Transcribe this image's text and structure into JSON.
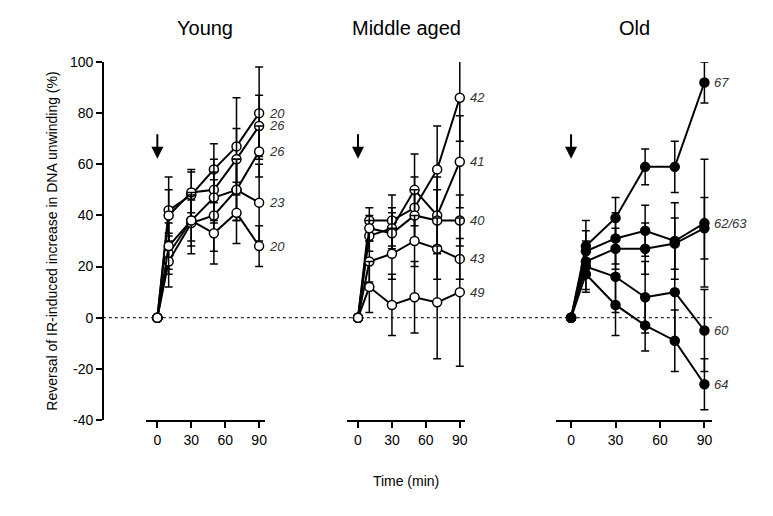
{
  "chart_data": [
    {
      "type": "line",
      "title": "Young",
      "y_label": "Reversal of IR-induced increase in DNA unwinding (%)",
      "x": [
        0,
        10,
        30,
        50,
        70,
        90
      ],
      "xlim": [
        -10,
        95
      ],
      "xticks": [
        0,
        30,
        60,
        90
      ],
      "ylim": [
        -40,
        100
      ],
      "yticks": [
        -40,
        -20,
        0,
        20,
        40,
        60,
        80,
        100
      ],
      "baseline": 0,
      "grid": false,
      "series": [
        {
          "name": "20",
          "color": "#000000",
          "marker": "open circle",
          "values": [
            0,
            42,
            48,
            58,
            67,
            80
          ],
          "error": [
            0,
            13,
            10,
            10,
            19,
            18
          ]
        },
        {
          "name": "26",
          "color": "#000000",
          "marker": "open circle",
          "values": [
            0,
            40,
            49,
            50,
            62,
            75
          ],
          "error": [
            0,
            10,
            8,
            12,
            12,
            12
          ]
        },
        {
          "name": "26",
          "color": "#000000",
          "marker": "open circle",
          "values": [
            0,
            25,
            38,
            47,
            50,
            65
          ],
          "error": [
            0,
            8,
            8,
            10,
            12,
            10
          ]
        },
        {
          "name": "23",
          "color": "#000000",
          "marker": "open circle",
          "values": [
            0,
            22,
            37,
            40,
            50,
            45
          ],
          "error": [
            0,
            10,
            12,
            14,
            12,
            15
          ]
        },
        {
          "name": "20",
          "color": "#000000",
          "marker": "open circle",
          "values": [
            0,
            28,
            38,
            33,
            41,
            28
          ],
          "error": [
            0,
            9,
            10,
            12,
            12,
            8
          ]
        }
      ]
    },
    {
      "type": "line",
      "title": "Middle aged",
      "x_label": "Time (min)",
      "x": [
        0,
        10,
        30,
        50,
        70,
        90
      ],
      "xlim": [
        -10,
        95
      ],
      "xticks": [
        0,
        30,
        60,
        90
      ],
      "series": [
        {
          "name": "42",
          "color": "#000000",
          "marker": "open circle",
          "values": [
            0,
            38,
            38,
            43,
            58,
            86
          ],
          "error": [
            0,
            5,
            10,
            12,
            17,
            17
          ]
        },
        {
          "name": "41",
          "color": "#000000",
          "marker": "open circle",
          "values": [
            0,
            32,
            35,
            50,
            40,
            61
          ],
          "error": [
            0,
            6,
            8,
            14,
            15,
            18
          ]
        },
        {
          "name": "40",
          "color": "#000000",
          "marker": "open circle",
          "values": [
            0,
            35,
            33,
            40,
            38,
            38
          ],
          "error": [
            0,
            5,
            8,
            10,
            12,
            10
          ]
        },
        {
          "name": "43",
          "color": "#000000",
          "marker": "open circle",
          "values": [
            0,
            22,
            25,
            30,
            27,
            23
          ],
          "error": [
            0,
            8,
            10,
            10,
            12,
            8
          ]
        },
        {
          "name": "49",
          "color": "#000000",
          "marker": "open circle",
          "values": [
            0,
            12,
            5,
            8,
            6,
            10
          ],
          "error": [
            0,
            10,
            12,
            14,
            22,
            29
          ]
        }
      ]
    },
    {
      "type": "line",
      "title": "Old",
      "x": [
        0,
        10,
        30,
        50,
        70,
        90
      ],
      "xlim": [
        -10,
        95
      ],
      "xticks": [
        0,
        30,
        60,
        90
      ],
      "series": [
        {
          "name": "67",
          "color": "#000000",
          "marker": "circle",
          "values": [
            0,
            28,
            39,
            59,
            59,
            92
          ],
          "error": [
            0,
            10,
            8,
            7,
            10,
            8
          ]
        },
        {
          "name": "62/63",
          "color": "#000000",
          "marker": "circle",
          "values": [
            0,
            26,
            31,
            34,
            30,
            37
          ],
          "error": [
            0,
            8,
            10,
            10,
            15,
            25
          ]
        },
        {
          "name": null,
          "color": "#000000",
          "marker": "circle",
          "values": [
            0,
            22,
            27,
            27,
            29,
            35
          ],
          "error": [
            0,
            6,
            8,
            10,
            10,
            12
          ]
        },
        {
          "name": "60",
          "color": "#000000",
          "marker": "circle",
          "values": [
            0,
            20,
            16,
            8,
            10,
            -5
          ],
          "error": [
            0,
            10,
            14,
            14,
            20,
            16
          ]
        },
        {
          "name": "64",
          "color": "#000000",
          "marker": "circle",
          "values": [
            0,
            17,
            5,
            -3,
            -9,
            -26
          ],
          "error": [
            0,
            6,
            12,
            10,
            12,
            10
          ]
        }
      ]
    }
  ]
}
